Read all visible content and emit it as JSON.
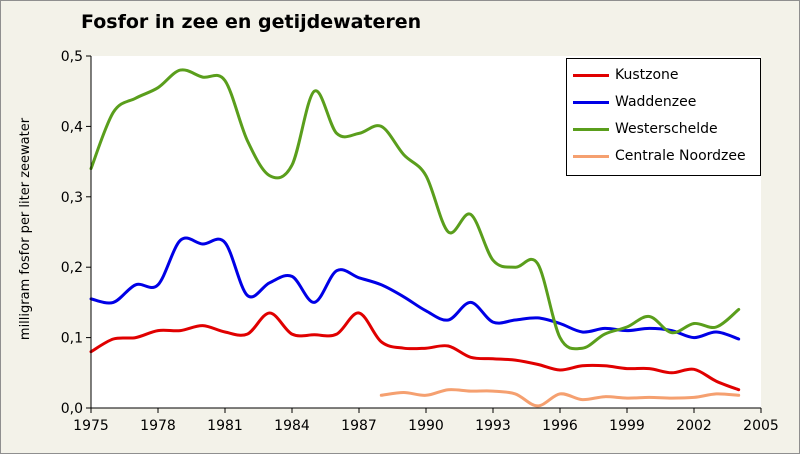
{
  "title": "Fosfor in zee en getijdewateren",
  "colors": {
    "background": "#f3f2e9",
    "Kustzone": "#e00000",
    "Waddenzee": "#0000e6",
    "Westerschelde": "#5a9e1c",
    "Centrale Noordzee": "#f5a070"
  },
  "chart_data": {
    "type": "line",
    "ylabel": "milligram fosfor per liter zeewater",
    "xlabel": "",
    "xlim": [
      1975,
      2005
    ],
    "ylim": [
      0,
      0.5
    ],
    "xticks": [
      1975,
      1978,
      1981,
      1984,
      1987,
      1990,
      1993,
      1996,
      1999,
      2002,
      2005
    ],
    "xtick_labels": [
      "1975",
      "1978",
      "1981",
      "1984",
      "1987",
      "1990",
      "1993",
      "1996",
      "1999",
      "2002",
      "2005"
    ],
    "yticks": [
      0,
      0.1,
      0.2,
      0.3,
      0.4,
      0.5
    ],
    "ytick_labels": [
      "0,0",
      "0,1",
      "0,2",
      "0,3",
      "0,4",
      "0,5"
    ],
    "grid": false,
    "legend_position": "top-right",
    "series": [
      {
        "name": "Kustzone",
        "color": "#e00000",
        "x": [
          1975,
          1976,
          1977,
          1978,
          1979,
          1980,
          1981,
          1982,
          1983,
          1984,
          1985,
          1986,
          1987,
          1988,
          1989,
          1990,
          1991,
          1992,
          1993,
          1994,
          1995,
          1996,
          1997,
          1998,
          1999,
          2000,
          2001,
          2002,
          2003,
          2004
        ],
        "y": [
          0.08,
          0.098,
          0.1,
          0.11,
          0.11,
          0.117,
          0.108,
          0.105,
          0.135,
          0.105,
          0.104,
          0.105,
          0.135,
          0.094,
          0.085,
          0.085,
          0.088,
          0.072,
          0.07,
          0.068,
          0.062,
          0.054,
          0.06,
          0.06,
          0.056,
          0.056,
          0.05,
          0.055,
          0.038,
          0.026
        ]
      },
      {
        "name": "Waddenzee",
        "color": "#0000e6",
        "x": [
          1975,
          1976,
          1977,
          1978,
          1979,
          1980,
          1981,
          1982,
          1983,
          1984,
          1985,
          1986,
          1987,
          1988,
          1989,
          1990,
          1991,
          1992,
          1993,
          1994,
          1995,
          1996,
          1997,
          1998,
          1999,
          2000,
          2001,
          2002,
          2003,
          2004
        ],
        "y": [
          0.155,
          0.15,
          0.175,
          0.175,
          0.238,
          0.233,
          0.235,
          0.16,
          0.178,
          0.187,
          0.15,
          0.195,
          0.185,
          0.175,
          0.158,
          0.138,
          0.125,
          0.15,
          0.122,
          0.125,
          0.128,
          0.12,
          0.108,
          0.113,
          0.11,
          0.113,
          0.11,
          0.1,
          0.108,
          0.098
        ]
      },
      {
        "name": "Westerschelde",
        "color": "#5a9e1c",
        "x": [
          1975,
          1976,
          1977,
          1978,
          1979,
          1980,
          1981,
          1982,
          1983,
          1984,
          1985,
          1986,
          1987,
          1988,
          1989,
          1990,
          1991,
          1992,
          1993,
          1994,
          1995,
          1996,
          1997,
          1998,
          1999,
          2000,
          2001,
          2002,
          2003,
          2004
        ],
        "y": [
          0.34,
          0.42,
          0.44,
          0.455,
          0.48,
          0.47,
          0.465,
          0.38,
          0.33,
          0.345,
          0.45,
          0.39,
          0.39,
          0.4,
          0.36,
          0.33,
          0.25,
          0.275,
          0.21,
          0.2,
          0.205,
          0.1,
          0.085,
          0.105,
          0.115,
          0.13,
          0.107,
          0.12,
          0.115,
          0.14
        ]
      },
      {
        "name": "Centrale Noordzee",
        "color": "#f5a070",
        "x": [
          1988,
          1989,
          1990,
          1991,
          1992,
          1993,
          1994,
          1995,
          1996,
          1997,
          1998,
          1999,
          2000,
          2001,
          2002,
          2003,
          2004
        ],
        "y": [
          0.018,
          0.022,
          0.018,
          0.026,
          0.024,
          0.024,
          0.02,
          0.003,
          0.02,
          0.012,
          0.016,
          0.014,
          0.015,
          0.014,
          0.015,
          0.02,
          0.018
        ]
      }
    ]
  }
}
